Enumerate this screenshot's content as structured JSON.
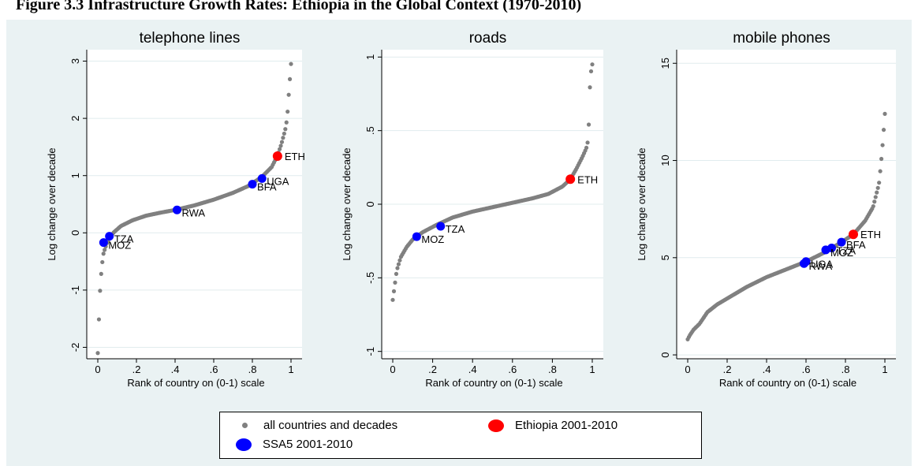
{
  "figure_title": "Figure 3.3 Infrastructure Growth Rates: Ethiopia in the Global Context (1970-2010)",
  "legend": {
    "all": "all countries and decades",
    "ethiopia": "Ethiopia 2001-2010",
    "ssa5": "SSA5 2001-2010"
  },
  "colors": {
    "background": "#eaf2f3",
    "all_points": "#808080",
    "ethiopia": "#ff0000",
    "ssa5": "#0000ff"
  },
  "chart_data": [
    {
      "type": "scatter",
      "title": "telephone lines",
      "xlabel": "Rank of country on (0-1) scale",
      "ylabel": "Log change over decade",
      "xlim": [
        0,
        1
      ],
      "xticks": [
        0,
        0.2,
        0.4,
        0.6,
        0.8,
        1
      ],
      "xtick_labels": [
        "0",
        ".2",
        ".4",
        ".6",
        ".8",
        "1"
      ],
      "ylim": [
        -2.2,
        3.2
      ],
      "yticks": [
        -2,
        -1,
        0,
        1,
        2,
        3
      ],
      "ytick_labels": [
        "-2",
        "-1",
        "0",
        "1",
        "2",
        "3"
      ],
      "grid": true,
      "curve_x": [
        0.0,
        0.01,
        0.02,
        0.03,
        0.05,
        0.08,
        0.12,
        0.18,
        0.25,
        0.32,
        0.4,
        0.5,
        0.6,
        0.7,
        0.78,
        0.85,
        0.9,
        0.93,
        0.95,
        0.97,
        0.98,
        0.99,
        1.0
      ],
      "curve_y": [
        -2.1,
        -1.1,
        -0.6,
        -0.35,
        -0.15,
        0.0,
        0.12,
        0.22,
        0.3,
        0.35,
        0.4,
        0.48,
        0.58,
        0.7,
        0.82,
        0.98,
        1.15,
        1.35,
        1.55,
        1.8,
        2.0,
        2.5,
        2.95
      ],
      "ethiopia": [
        {
          "label": "ETH",
          "x": 0.93,
          "y": 1.34
        }
      ],
      "ssa5": [
        {
          "label": "UGA",
          "x": 0.85,
          "y": 0.95
        },
        {
          "label": "BFA",
          "x": 0.8,
          "y": 0.85
        },
        {
          "label": "RWA",
          "x": 0.41,
          "y": 0.4
        },
        {
          "label": "TZA",
          "x": 0.06,
          "y": -0.06
        },
        {
          "label": "MOZ",
          "x": 0.03,
          "y": -0.17
        }
      ]
    },
    {
      "type": "scatter",
      "title": "roads",
      "xlabel": "Rank of country on (0-1) scale",
      "ylabel": "Log change over decade",
      "xlim": [
        0,
        1
      ],
      "xticks": [
        0,
        0.2,
        0.4,
        0.6,
        0.8,
        1
      ],
      "xtick_labels": [
        "0",
        ".2",
        ".4",
        ".6",
        ".8",
        "1"
      ],
      "ylim": [
        -1.05,
        1.05
      ],
      "yticks": [
        -1,
        -0.5,
        0,
        0.5,
        1
      ],
      "ytick_labels": [
        "-1",
        "-.5",
        "0",
        ".5",
        "1"
      ],
      "grid": true,
      "curve_x": [
        0.0,
        0.01,
        0.02,
        0.04,
        0.07,
        0.1,
        0.15,
        0.22,
        0.3,
        0.4,
        0.5,
        0.6,
        0.7,
        0.78,
        0.85,
        0.89,
        0.92,
        0.95,
        0.97,
        0.98,
        0.99,
        1.0
      ],
      "curve_y": [
        -0.65,
        -0.55,
        -0.45,
        -0.36,
        -0.29,
        -0.24,
        -0.19,
        -0.14,
        -0.09,
        -0.05,
        -0.02,
        0.01,
        0.04,
        0.07,
        0.12,
        0.17,
        0.24,
        0.32,
        0.38,
        0.44,
        0.87,
        0.95
      ],
      "ethiopia": [
        {
          "label": "ETH",
          "x": 0.89,
          "y": 0.17
        }
      ],
      "ssa5": [
        {
          "label": "TZA",
          "x": 0.24,
          "y": -0.15
        },
        {
          "label": "MOZ",
          "x": 0.12,
          "y": -0.22
        }
      ]
    },
    {
      "type": "scatter",
      "title": "mobile phones",
      "xlabel": "Rank of country on (0-1) scale",
      "ylabel": "Log change over decade",
      "xlim": [
        0,
        1
      ],
      "xticks": [
        0,
        0.2,
        0.4,
        0.6,
        0.8,
        1
      ],
      "xtick_labels": [
        "0",
        ".2",
        ".4",
        ".6",
        ".8",
        "1"
      ],
      "ylim": [
        -0.2,
        15.7
      ],
      "yticks": [
        0,
        5,
        10,
        15
      ],
      "ytick_labels": [
        "0",
        "5",
        "10",
        "15"
      ],
      "grid": true,
      "curve_x": [
        0.0,
        0.01,
        0.03,
        0.06,
        0.1,
        0.15,
        0.2,
        0.3,
        0.4,
        0.5,
        0.6,
        0.7,
        0.78,
        0.84,
        0.9,
        0.94,
        0.97,
        0.98,
        0.99,
        1.0
      ],
      "curve_y": [
        0.8,
        1.0,
        1.3,
        1.6,
        2.2,
        2.6,
        2.9,
        3.5,
        4.0,
        4.4,
        4.8,
        5.3,
        5.8,
        6.2,
        6.9,
        7.6,
        8.8,
        9.8,
        11.0,
        12.4
      ],
      "ethiopia": [
        {
          "label": "ETH",
          "x": 0.84,
          "y": 6.2
        }
      ],
      "ssa5": [
        {
          "label": "BFA",
          "x": 0.78,
          "y": 5.8
        },
        {
          "label": "TZA",
          "x": 0.73,
          "y": 5.5
        },
        {
          "label": "MOZ",
          "x": 0.7,
          "y": 5.4
        },
        {
          "label": "UGA",
          "x": 0.6,
          "y": 4.8
        },
        {
          "label": "RWA",
          "x": 0.59,
          "y": 4.7
        }
      ]
    }
  ]
}
